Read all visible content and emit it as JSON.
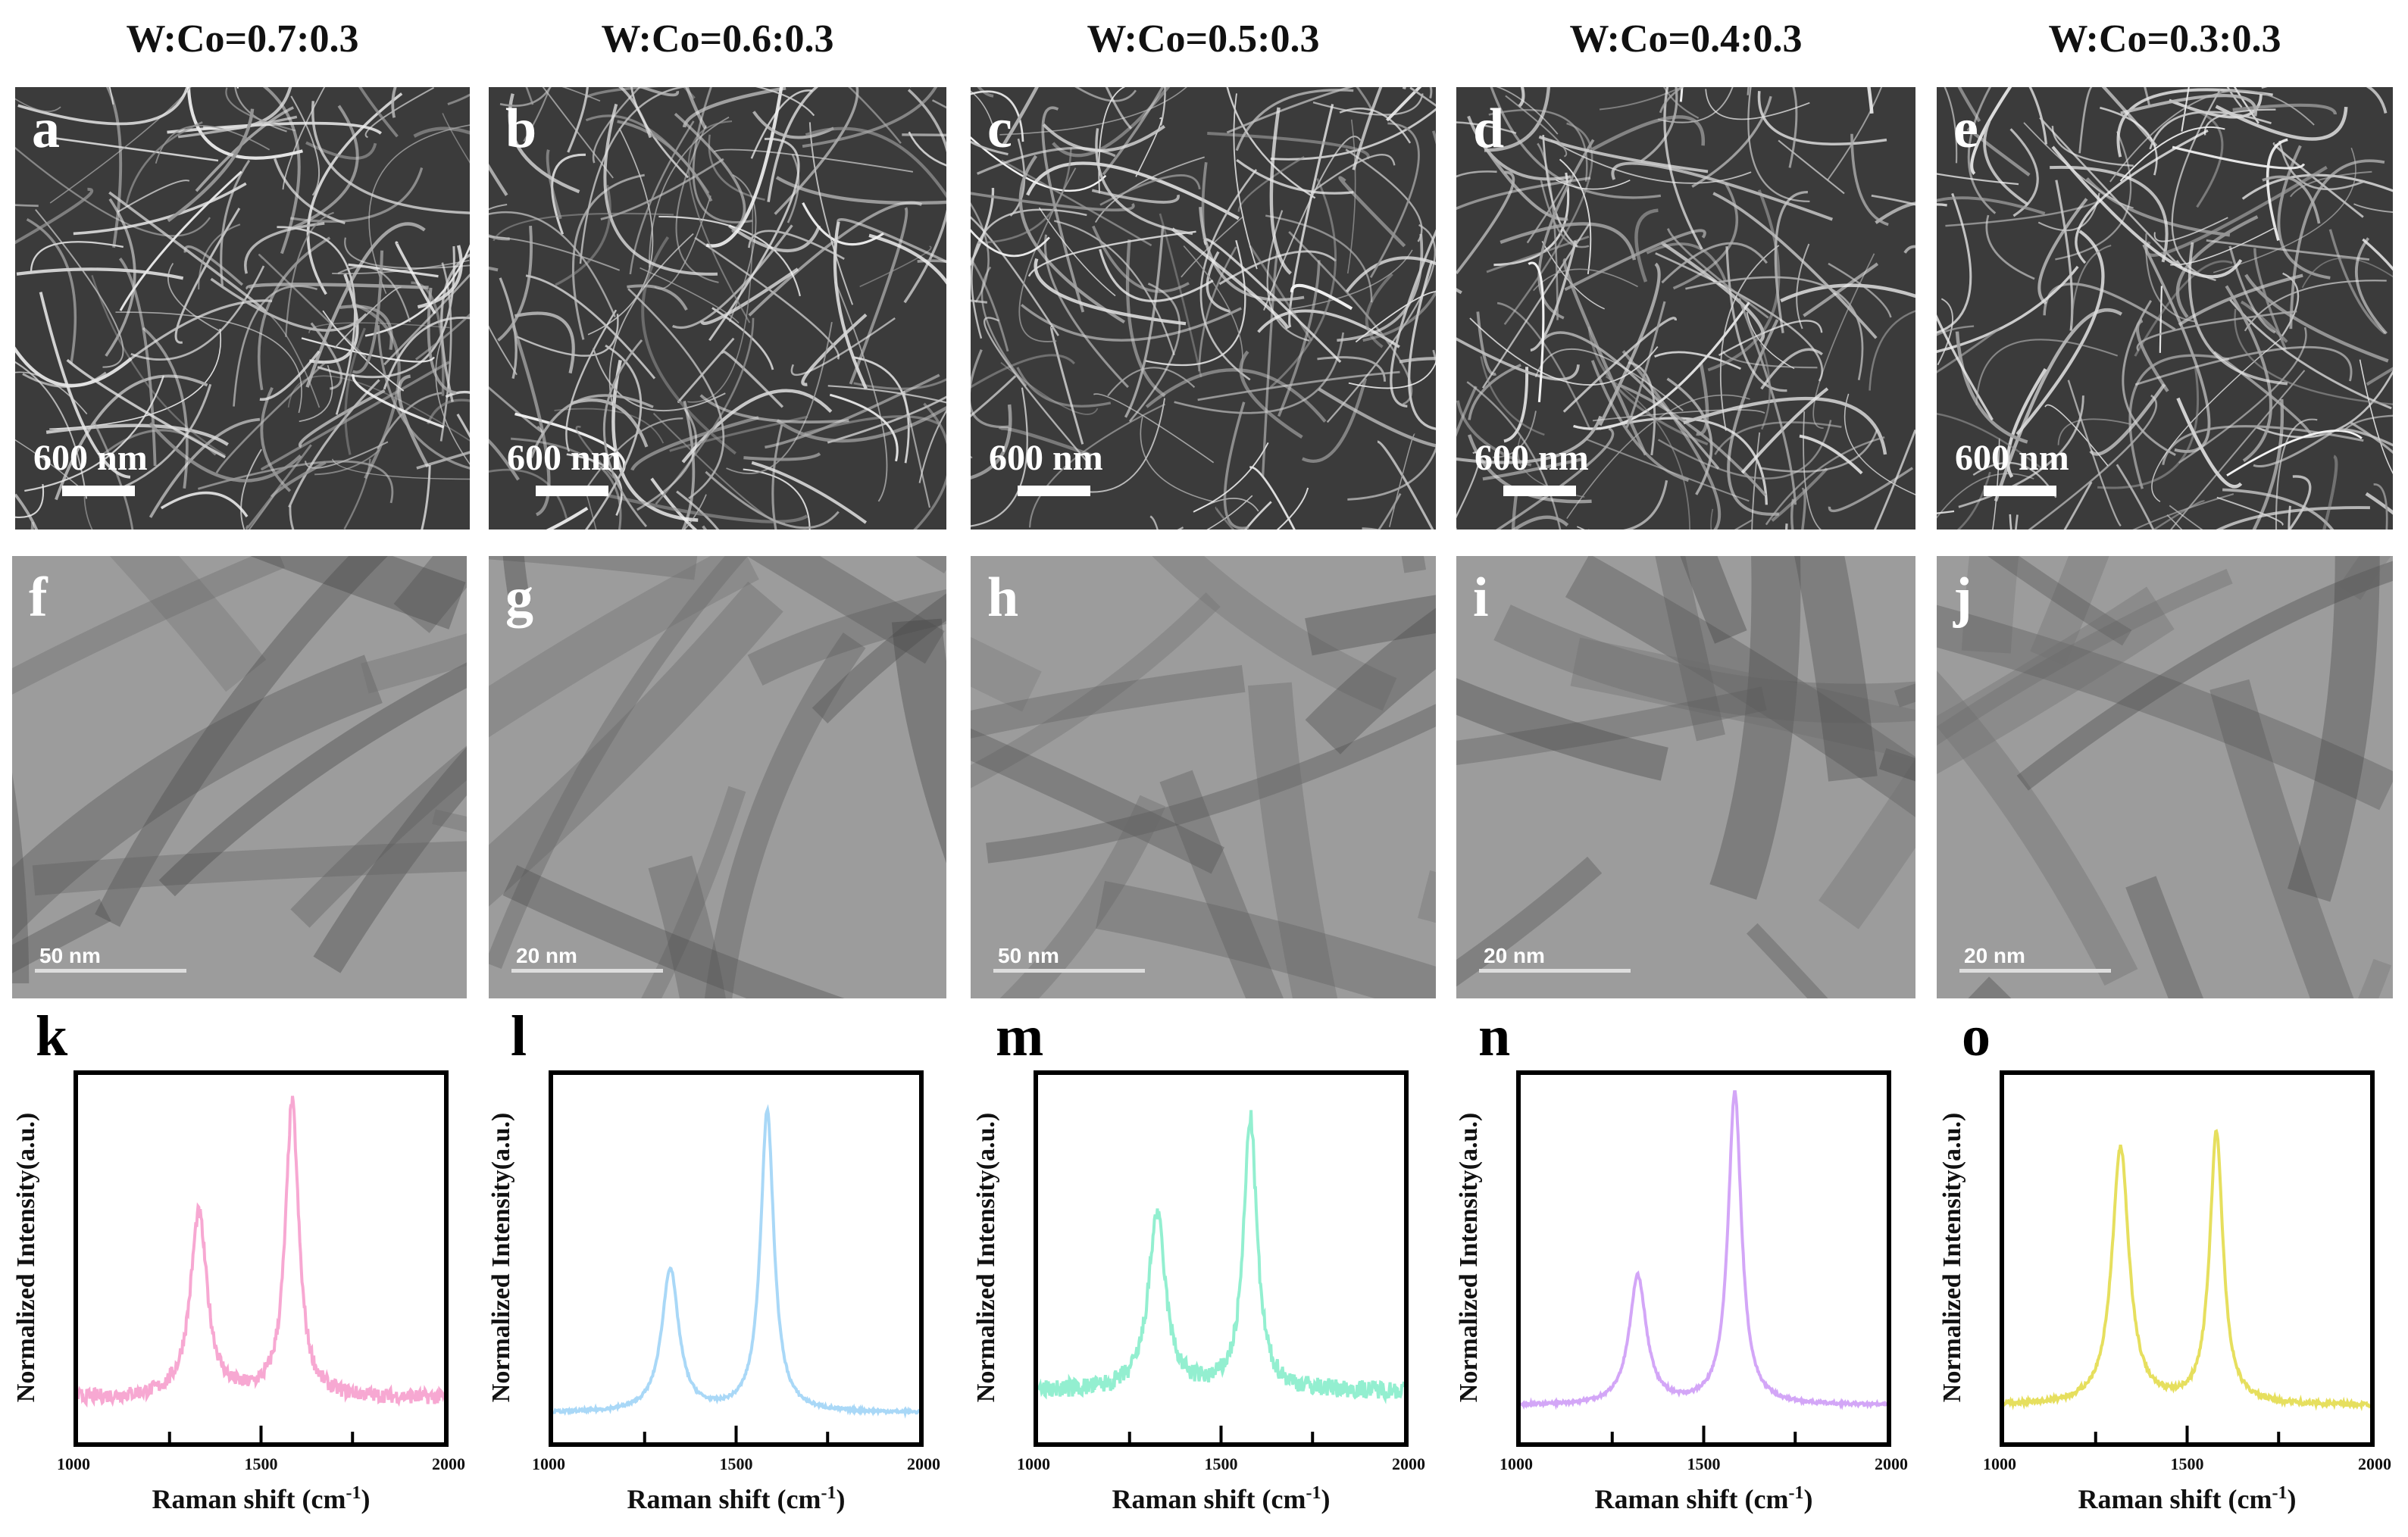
{
  "columns": [
    {
      "title": "W:Co=0.7:0.3",
      "sem_letter": "a",
      "sem_scale": "600 nm",
      "tem_letter": "f",
      "tem_scale": "50 nm",
      "raman_letter": "k"
    },
    {
      "title": "W:Co=0.6:0.3",
      "sem_letter": "b",
      "sem_scale": "600 nm",
      "tem_letter": "g",
      "tem_scale": "20 nm",
      "raman_letter": "l"
    },
    {
      "title": "W:Co=0.5:0.3",
      "sem_letter": "c",
      "sem_scale": "600 nm",
      "tem_letter": "h",
      "tem_scale": "50 nm",
      "raman_letter": "m"
    },
    {
      "title": "W:Co=0.4:0.3",
      "sem_letter": "d",
      "sem_scale": "600 nm",
      "tem_letter": "i",
      "tem_scale": "20 nm",
      "raman_letter": "n"
    },
    {
      "title": "W:Co=0.3:0.3",
      "sem_letter": "e",
      "sem_scale": "600 nm",
      "tem_letter": "j",
      "tem_scale": "20 nm",
      "raman_letter": "o"
    }
  ],
  "axis": {
    "xlabel": "Raman shift (cm",
    "xlabel_sup": "-1",
    "xlabel_end": ")",
    "ylabel": "Normalized Intensity(a.u.)",
    "xticks": [
      "1000",
      "1500",
      "2000"
    ]
  },
  "chart_data": [
    {
      "type": "line",
      "panel": "k",
      "color": "#f7a8d2",
      "xlim": [
        1000,
        2000
      ],
      "ylim": [
        0,
        1
      ],
      "grid": false,
      "xticks": [
        1000,
        1500,
        2000
      ],
      "baseline": 0.12,
      "noise": 0.02,
      "peaks": [
        {
          "x": 1330,
          "y": 0.62
        },
        {
          "x": 1585,
          "y": 0.92
        }
      ]
    },
    {
      "type": "line",
      "panel": "l",
      "color": "#a9d8f7",
      "xlim": [
        1000,
        2000
      ],
      "ylim": [
        0,
        1
      ],
      "grid": false,
      "xticks": [
        1000,
        1500,
        2000
      ],
      "baseline": 0.08,
      "noise": 0.004,
      "peaks": [
        {
          "x": 1320,
          "y": 0.47
        },
        {
          "x": 1585,
          "y": 0.9
        }
      ]
    },
    {
      "type": "line",
      "panel": "m",
      "color": "#93efd0",
      "xlim": [
        1000,
        2000
      ],
      "ylim": [
        0,
        1
      ],
      "grid": false,
      "xticks": [
        1000,
        1500,
        2000
      ],
      "baseline": 0.14,
      "noise": 0.025,
      "peaks": [
        {
          "x": 1325,
          "y": 0.62
        },
        {
          "x": 1580,
          "y": 0.88
        }
      ]
    },
    {
      "type": "line",
      "panel": "n",
      "color": "#d3a6f7",
      "xlim": [
        1000,
        2000
      ],
      "ylim": [
        0,
        1
      ],
      "grid": false,
      "xticks": [
        1000,
        1500,
        2000
      ],
      "baseline": 0.1,
      "noise": 0.004,
      "peaks": [
        {
          "x": 1320,
          "y": 0.45
        },
        {
          "x": 1585,
          "y": 0.95
        }
      ]
    },
    {
      "type": "line",
      "panel": "o",
      "color": "#e6df5e",
      "xlim": [
        1000,
        2000
      ],
      "ylim": [
        0,
        1
      ],
      "grid": false,
      "xticks": [
        1000,
        1500,
        2000
      ],
      "baseline": 0.1,
      "noise": 0.006,
      "peaks": [
        {
          "x": 1318,
          "y": 0.8
        },
        {
          "x": 1580,
          "y": 0.84
        }
      ]
    }
  ]
}
